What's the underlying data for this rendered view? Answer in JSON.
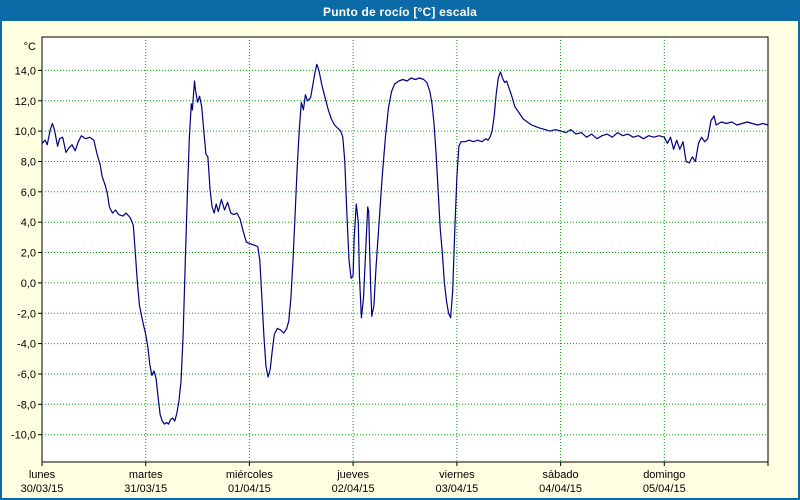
{
  "window": {
    "title": "Punto de rocío [°C] escala"
  },
  "colors": {
    "titlebar": "#0c6aa6",
    "frame": "#0c6aa6",
    "background": "#ffffe1",
    "plot_bg": "#ffffff",
    "grid": "#00a000",
    "axis": "#000000",
    "text": "#000000",
    "line": "#000080"
  },
  "chart_data": {
    "type": "line",
    "title": "Punto de rocío [°C] escala",
    "xlabel": "",
    "ylabel": "°C",
    "legend": "none",
    "grid": "dashed green horizontal and vertical at day boundaries",
    "xlim": [
      0,
      7
    ],
    "ylim": [
      -11.8,
      16.2
    ],
    "yticks": [
      {
        "value": 14,
        "label": "14,0"
      },
      {
        "value": 12,
        "label": "12,0"
      },
      {
        "value": 10,
        "label": "10,0"
      },
      {
        "value": 8,
        "label": "8,0"
      },
      {
        "value": 6,
        "label": "6,0"
      },
      {
        "value": 4,
        "label": "4,0"
      },
      {
        "value": 2,
        "label": "2,0"
      },
      {
        "value": 0,
        "label": "0,0"
      },
      {
        "value": -2,
        "label": "-2,0"
      },
      {
        "value": -4,
        "label": "-4,0"
      },
      {
        "value": -6,
        "label": "-6,0"
      },
      {
        "value": -8,
        "label": "-8,0"
      },
      {
        "value": -10,
        "label": "-10,0"
      }
    ],
    "x_categories": [
      {
        "name": "lunes",
        "date": "30/03/15"
      },
      {
        "name": "martes",
        "date": "31/03/15"
      },
      {
        "name": "miércoles",
        "date": "01/04/15"
      },
      {
        "name": "jueves",
        "date": "02/04/15"
      },
      {
        "name": "viernes",
        "date": "03/04/15"
      },
      {
        "name": "sábado",
        "date": "04/04/15"
      },
      {
        "name": "domingo",
        "date": "05/04/15"
      }
    ],
    "series": [
      {
        "name": "Punto de rocío",
        "color": "#000080",
        "x_unit": "days from 30/03/15 00:00",
        "y_unit": "°C",
        "points": [
          [
            0.0,
            9.2
          ],
          [
            0.03,
            9.4
          ],
          [
            0.05,
            9.1
          ],
          [
            0.08,
            10.1
          ],
          [
            0.1,
            10.5
          ],
          [
            0.12,
            10.1
          ],
          [
            0.15,
            9.0
          ],
          [
            0.17,
            9.5
          ],
          [
            0.2,
            9.6
          ],
          [
            0.23,
            8.6
          ],
          [
            0.26,
            8.9
          ],
          [
            0.29,
            9.1
          ],
          [
            0.32,
            8.7
          ],
          [
            0.35,
            9.3
          ],
          [
            0.38,
            9.7
          ],
          [
            0.42,
            9.5
          ],
          [
            0.46,
            9.6
          ],
          [
            0.5,
            9.4
          ],
          [
            0.53,
            8.5
          ],
          [
            0.56,
            7.8
          ],
          [
            0.58,
            7.0
          ],
          [
            0.61,
            6.4
          ],
          [
            0.63,
            5.9
          ],
          [
            0.65,
            5.0
          ],
          [
            0.68,
            4.6
          ],
          [
            0.71,
            4.8
          ],
          [
            0.74,
            4.5
          ],
          [
            0.78,
            4.4
          ],
          [
            0.81,
            4.6
          ],
          [
            0.85,
            4.3
          ],
          [
            0.88,
            3.8
          ],
          [
            0.9,
            2.0
          ],
          [
            0.92,
            0.0
          ],
          [
            0.94,
            -1.5
          ],
          [
            0.96,
            -2.2
          ],
          [
            0.98,
            -2.8
          ],
          [
            1.0,
            -3.4
          ],
          [
            1.02,
            -4.2
          ],
          [
            1.04,
            -5.4
          ],
          [
            1.06,
            -6.1
          ],
          [
            1.08,
            -5.8
          ],
          [
            1.1,
            -6.3
          ],
          [
            1.12,
            -7.6
          ],
          [
            1.14,
            -8.7
          ],
          [
            1.16,
            -9.1
          ],
          [
            1.18,
            -9.3
          ],
          [
            1.2,
            -9.2
          ],
          [
            1.22,
            -9.3
          ],
          [
            1.24,
            -9.0
          ],
          [
            1.26,
            -8.9
          ],
          [
            1.28,
            -9.1
          ],
          [
            1.3,
            -8.6
          ],
          [
            1.32,
            -7.8
          ],
          [
            1.34,
            -6.5
          ],
          [
            1.36,
            -3.5
          ],
          [
            1.38,
            1.0
          ],
          [
            1.4,
            5.5
          ],
          [
            1.42,
            9.5
          ],
          [
            1.44,
            11.8
          ],
          [
            1.45,
            11.4
          ],
          [
            1.47,
            13.3
          ],
          [
            1.48,
            12.7
          ],
          [
            1.5,
            11.9
          ],
          [
            1.52,
            12.3
          ],
          [
            1.54,
            11.6
          ],
          [
            1.56,
            10.0
          ],
          [
            1.58,
            8.5
          ],
          [
            1.6,
            8.3
          ],
          [
            1.62,
            6.2
          ],
          [
            1.64,
            5.0
          ],
          [
            1.66,
            4.6
          ],
          [
            1.68,
            5.2
          ],
          [
            1.7,
            4.7
          ],
          [
            1.73,
            5.5
          ],
          [
            1.76,
            4.8
          ],
          [
            1.79,
            5.3
          ],
          [
            1.82,
            4.6
          ],
          [
            1.85,
            4.5
          ],
          [
            1.88,
            4.6
          ],
          [
            1.91,
            4.2
          ],
          [
            1.94,
            3.4
          ],
          [
            1.97,
            2.7
          ],
          [
            2.0,
            2.6
          ],
          [
            2.04,
            2.5
          ],
          [
            2.08,
            2.4
          ],
          [
            2.1,
            1.5
          ],
          [
            2.12,
            -1.0
          ],
          [
            2.14,
            -3.5
          ],
          [
            2.16,
            -5.5
          ],
          [
            2.18,
            -6.2
          ],
          [
            2.2,
            -5.7
          ],
          [
            2.22,
            -4.5
          ],
          [
            2.24,
            -3.4
          ],
          [
            2.27,
            -3.0
          ],
          [
            2.3,
            -3.1
          ],
          [
            2.33,
            -3.3
          ],
          [
            2.36,
            -3.0
          ],
          [
            2.38,
            -2.5
          ],
          [
            2.4,
            -1.0
          ],
          [
            2.42,
            1.5
          ],
          [
            2.44,
            4.5
          ],
          [
            2.46,
            7.5
          ],
          [
            2.48,
            10.0
          ],
          [
            2.5,
            11.9
          ],
          [
            2.52,
            11.4
          ],
          [
            2.54,
            12.4
          ],
          [
            2.56,
            12.0
          ],
          [
            2.59,
            12.2
          ],
          [
            2.61,
            13.0
          ],
          [
            2.63,
            13.8
          ],
          [
            2.65,
            14.4
          ],
          [
            2.67,
            14.0
          ],
          [
            2.7,
            13.0
          ],
          [
            2.73,
            12.2
          ],
          [
            2.76,
            11.4
          ],
          [
            2.79,
            10.8
          ],
          [
            2.82,
            10.4
          ],
          [
            2.85,
            10.2
          ],
          [
            2.88,
            10.0
          ],
          [
            2.9,
            9.6
          ],
          [
            2.92,
            8.0
          ],
          [
            2.94,
            4.5
          ],
          [
            2.96,
            1.5
          ],
          [
            2.98,
            0.3
          ],
          [
            3.0,
            0.5
          ],
          [
            3.01,
            3.0
          ],
          [
            3.03,
            5.2
          ],
          [
            3.05,
            4.0
          ],
          [
            3.06,
            0.5
          ],
          [
            3.08,
            -2.3
          ],
          [
            3.1,
            -1.0
          ],
          [
            3.12,
            2.0
          ],
          [
            3.14,
            5.0
          ],
          [
            3.15,
            4.7
          ],
          [
            3.16,
            2.0
          ],
          [
            3.17,
            -0.5
          ],
          [
            3.18,
            -2.2
          ],
          [
            3.2,
            -1.5
          ],
          [
            3.22,
            1.0
          ],
          [
            3.25,
            4.0
          ],
          [
            3.28,
            7.0
          ],
          [
            3.31,
            9.5
          ],
          [
            3.34,
            11.5
          ],
          [
            3.37,
            12.6
          ],
          [
            3.4,
            13.1
          ],
          [
            3.44,
            13.3
          ],
          [
            3.48,
            13.4
          ],
          [
            3.52,
            13.3
          ],
          [
            3.56,
            13.5
          ],
          [
            3.6,
            13.4
          ],
          [
            3.64,
            13.5
          ],
          [
            3.68,
            13.4
          ],
          [
            3.71,
            13.2
          ],
          [
            3.74,
            12.6
          ],
          [
            3.76,
            11.8
          ],
          [
            3.78,
            10.5
          ],
          [
            3.8,
            8.5
          ],
          [
            3.82,
            6.0
          ],
          [
            3.84,
            3.5
          ],
          [
            3.86,
            2.0
          ],
          [
            3.88,
            0.0
          ],
          [
            3.9,
            -1.2
          ],
          [
            3.92,
            -2.0
          ],
          [
            3.94,
            -2.3
          ],
          [
            3.96,
            -0.5
          ],
          [
            3.98,
            3.5
          ],
          [
            4.0,
            7.0
          ],
          [
            4.02,
            9.0
          ],
          [
            4.04,
            9.3
          ],
          [
            4.08,
            9.3
          ],
          [
            4.12,
            9.4
          ],
          [
            4.16,
            9.3
          ],
          [
            4.2,
            9.4
          ],
          [
            4.24,
            9.3
          ],
          [
            4.28,
            9.5
          ],
          [
            4.3,
            9.4
          ],
          [
            4.32,
            9.6
          ],
          [
            4.34,
            10.0
          ],
          [
            4.36,
            11.0
          ],
          [
            4.38,
            12.5
          ],
          [
            4.4,
            13.5
          ],
          [
            4.42,
            13.9
          ],
          [
            4.44,
            13.5
          ],
          [
            4.46,
            13.2
          ],
          [
            4.48,
            13.3
          ],
          [
            4.5,
            12.9
          ],
          [
            4.53,
            12.3
          ],
          [
            4.56,
            11.6
          ],
          [
            4.6,
            11.2
          ],
          [
            4.64,
            10.8
          ],
          [
            4.68,
            10.6
          ],
          [
            4.72,
            10.4
          ],
          [
            4.76,
            10.3
          ],
          [
            4.8,
            10.2
          ],
          [
            4.85,
            10.1
          ],
          [
            4.9,
            10.0
          ],
          [
            4.95,
            10.1
          ],
          [
            5.0,
            10.0
          ],
          [
            5.05,
            9.9
          ],
          [
            5.1,
            10.1
          ],
          [
            5.15,
            9.8
          ],
          [
            5.2,
            9.9
          ],
          [
            5.25,
            9.6
          ],
          [
            5.3,
            9.8
          ],
          [
            5.35,
            9.5
          ],
          [
            5.4,
            9.7
          ],
          [
            5.45,
            9.8
          ],
          [
            5.5,
            9.6
          ],
          [
            5.55,
            9.9
          ],
          [
            5.6,
            9.7
          ],
          [
            5.65,
            9.8
          ],
          [
            5.7,
            9.6
          ],
          [
            5.75,
            9.7
          ],
          [
            5.8,
            9.5
          ],
          [
            5.85,
            9.7
          ],
          [
            5.9,
            9.6
          ],
          [
            5.95,
            9.7
          ],
          [
            6.0,
            9.6
          ],
          [
            6.03,
            9.2
          ],
          [
            6.06,
            9.6
          ],
          [
            6.09,
            8.8
          ],
          [
            6.12,
            9.4
          ],
          [
            6.15,
            8.8
          ],
          [
            6.18,
            9.3
          ],
          [
            6.21,
            8.0
          ],
          [
            6.24,
            7.9
          ],
          [
            6.27,
            8.3
          ],
          [
            6.3,
            8.0
          ],
          [
            6.33,
            9.2
          ],
          [
            6.36,
            9.6
          ],
          [
            6.39,
            9.3
          ],
          [
            6.42,
            9.5
          ],
          [
            6.45,
            10.7
          ],
          [
            6.48,
            11.0
          ],
          [
            6.5,
            10.4
          ],
          [
            6.55,
            10.6
          ],
          [
            6.6,
            10.5
          ],
          [
            6.65,
            10.6
          ],
          [
            6.7,
            10.4
          ],
          [
            6.75,
            10.5
          ],
          [
            6.8,
            10.6
          ],
          [
            6.85,
            10.5
          ],
          [
            6.9,
            10.4
          ],
          [
            6.95,
            10.5
          ],
          [
            7.0,
            10.4
          ]
        ]
      }
    ]
  }
}
